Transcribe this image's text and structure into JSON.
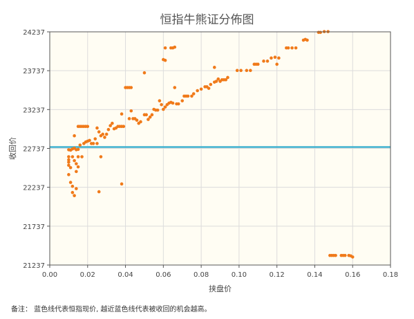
{
  "title": "恒指牛熊证分佈图",
  "footnote": "备注：  蓝色线代表恒指现价, 越近蓝色线代表被收回的机会越高。",
  "colors": {
    "plot_background": "#fffdf3",
    "grid": "#dcdcdc",
    "frame": "#555555",
    "points": "#f07a1a",
    "reference_line": "#3fb1cf"
  },
  "chart_data": {
    "type": "scatter",
    "title": "恒指牛熊证分佈图",
    "xlabel": "挟盘价",
    "ylabel": "收回价",
    "xlim": [
      0,
      0.18
    ],
    "ylim": [
      21237,
      24237
    ],
    "x_ticks": [
      "0.00",
      "0.02",
      "0.04",
      "0.06",
      "0.08",
      "0.10",
      "0.12",
      "0.14",
      "0.16",
      "0.18"
    ],
    "y_ticks": [
      "21237",
      "21737",
      "22237",
      "22737",
      "23237",
      "23737",
      "24237"
    ],
    "grid": true,
    "reference_line": {
      "y": 22755
    },
    "points": [
      [
        0.01,
        22720
      ],
      [
        0.011,
        22715
      ],
      [
        0.012,
        22730
      ],
      [
        0.013,
        22740
      ],
      [
        0.014,
        22720
      ],
      [
        0.015,
        22725
      ],
      [
        0.01,
        22630
      ],
      [
        0.01,
        22590
      ],
      [
        0.01,
        22560
      ],
      [
        0.01,
        22520
      ],
      [
        0.011,
        22490
      ],
      [
        0.01,
        22400
      ],
      [
        0.011,
        22300
      ],
      [
        0.012,
        22250
      ],
      [
        0.012,
        22170
      ],
      [
        0.013,
        22130
      ],
      [
        0.014,
        22220
      ],
      [
        0.012,
        22630
      ],
      [
        0.013,
        22580
      ],
      [
        0.014,
        22540
      ],
      [
        0.015,
        22500
      ],
      [
        0.014,
        22440
      ],
      [
        0.015,
        22630
      ],
      [
        0.017,
        22630
      ],
      [
        0.013,
        22900
      ],
      [
        0.015,
        23020
      ],
      [
        0.016,
        23020
      ],
      [
        0.017,
        23020
      ],
      [
        0.018,
        23020
      ],
      [
        0.019,
        23020
      ],
      [
        0.02,
        23020
      ],
      [
        0.016,
        22780
      ],
      [
        0.018,
        22800
      ],
      [
        0.019,
        22820
      ],
      [
        0.02,
        22830
      ],
      [
        0.021,
        22840
      ],
      [
        0.022,
        22800
      ],
      [
        0.023,
        22800
      ],
      [
        0.024,
        22860
      ],
      [
        0.025,
        23000
      ],
      [
        0.026,
        22950
      ],
      [
        0.027,
        22900
      ],
      [
        0.028,
        22920
      ],
      [
        0.029,
        22880
      ],
      [
        0.03,
        22920
      ],
      [
        0.031,
        22980
      ],
      [
        0.032,
        23030
      ],
      [
        0.033,
        23060
      ],
      [
        0.034,
        22990
      ],
      [
        0.035,
        23000
      ],
      [
        0.036,
        23020
      ],
      [
        0.037,
        23020
      ],
      [
        0.038,
        23020
      ],
      [
        0.039,
        23020
      ],
      [
        0.025,
        22800
      ],
      [
        0.027,
        22630
      ],
      [
        0.026,
        22180
      ],
      [
        0.038,
        22280
      ],
      [
        0.038,
        23180
      ],
      [
        0.04,
        23520
      ],
      [
        0.041,
        23520
      ],
      [
        0.042,
        23520
      ],
      [
        0.043,
        23520
      ],
      [
        0.043,
        23220
      ],
      [
        0.042,
        23120
      ],
      [
        0.044,
        23120
      ],
      [
        0.045,
        23120
      ],
      [
        0.046,
        23100
      ],
      [
        0.047,
        23060
      ],
      [
        0.048,
        23080
      ],
      [
        0.05,
        23170
      ],
      [
        0.051,
        23170
      ],
      [
        0.052,
        23110
      ],
      [
        0.053,
        23140
      ],
      [
        0.054,
        23170
      ],
      [
        0.055,
        23240
      ],
      [
        0.056,
        23230
      ],
      [
        0.057,
        23230
      ],
      [
        0.058,
        23350
      ],
      [
        0.059,
        23300
      ],
      [
        0.06,
        23240
      ],
      [
        0.061,
        23270
      ],
      [
        0.062,
        23300
      ],
      [
        0.063,
        23320
      ],
      [
        0.064,
        23330
      ],
      [
        0.065,
        23320
      ],
      [
        0.066,
        23520
      ],
      [
        0.067,
        23310
      ],
      [
        0.068,
        23310
      ],
      [
        0.07,
        23350
      ],
      [
        0.071,
        23410
      ],
      [
        0.072,
        23410
      ],
      [
        0.073,
        23410
      ],
      [
        0.075,
        23410
      ],
      [
        0.076,
        23440
      ],
      [
        0.078,
        23480
      ],
      [
        0.08,
        23500
      ],
      [
        0.082,
        23530
      ],
      [
        0.083,
        23530
      ],
      [
        0.084,
        23510
      ],
      [
        0.085,
        23560
      ],
      [
        0.087,
        23590
      ],
      [
        0.088,
        23600
      ],
      [
        0.089,
        23630
      ],
      [
        0.09,
        23600
      ],
      [
        0.091,
        23620
      ],
      [
        0.092,
        23620
      ],
      [
        0.093,
        23620
      ],
      [
        0.094,
        23650
      ],
      [
        0.087,
        23780
      ],
      [
        0.05,
        23710
      ],
      [
        0.06,
        23880
      ],
      [
        0.061,
        24030
      ],
      [
        0.064,
        24030
      ],
      [
        0.065,
        24030
      ],
      [
        0.066,
        24040
      ],
      [
        0.061,
        23870
      ],
      [
        0.099,
        23740
      ],
      [
        0.101,
        23740
      ],
      [
        0.104,
        23740
      ],
      [
        0.106,
        23740
      ],
      [
        0.108,
        23820
      ],
      [
        0.109,
        23820
      ],
      [
        0.11,
        23820
      ],
      [
        0.113,
        23860
      ],
      [
        0.115,
        23860
      ],
      [
        0.117,
        23900
      ],
      [
        0.119,
        23910
      ],
      [
        0.121,
        23900
      ],
      [
        0.12,
        23820
      ],
      [
        0.125,
        24030
      ],
      [
        0.126,
        24030
      ],
      [
        0.128,
        24030
      ],
      [
        0.13,
        24030
      ],
      [
        0.134,
        24130
      ],
      [
        0.135,
        24140
      ],
      [
        0.136,
        24130
      ],
      [
        0.142,
        24230
      ],
      [
        0.143,
        24230
      ],
      [
        0.145,
        24240
      ],
      [
        0.147,
        24240
      ],
      [
        0.148,
        21360
      ],
      [
        0.149,
        21360
      ],
      [
        0.15,
        21360
      ],
      [
        0.151,
        21360
      ],
      [
        0.154,
        21360
      ],
      [
        0.155,
        21360
      ],
      [
        0.156,
        21360
      ],
      [
        0.158,
        21360
      ],
      [
        0.159,
        21355
      ],
      [
        0.16,
        21340
      ]
    ]
  }
}
